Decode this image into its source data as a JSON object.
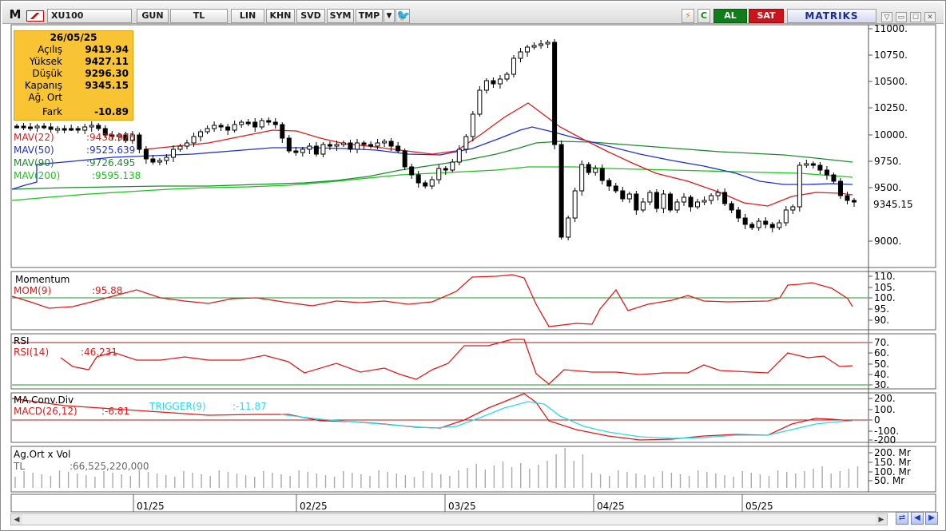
{
  "toolbar": {
    "logo": "M",
    "symbol": "XU100",
    "buttons": [
      "GUN",
      "TL",
      "LIN",
      "KHN",
      "SVD",
      "SYM",
      "TMP"
    ],
    "al": "AL",
    "sat": "SAT",
    "brand": "MATRIKS"
  },
  "info": {
    "date": "26/05/25",
    "rows": [
      {
        "label": "Açılış",
        "value": "9419.94"
      },
      {
        "label": "Yüksek",
        "value": "9427.11"
      },
      {
        "label": "Düşük",
        "value": "9296.30"
      },
      {
        "label": "Kapanış",
        "value": "9345.15"
      },
      {
        "label": "Ağ. Ort",
        "value": ""
      },
      {
        "label": "Fark",
        "value": "-10.89"
      }
    ]
  },
  "price_panel": {
    "legend": [
      {
        "label": "MAV(22)",
        "value": ":9438.975",
        "color": "#e11919"
      },
      {
        "label": "MAV(50)",
        "value": ":9525.639",
        "color": "#1f2fd6"
      },
      {
        "label": "MAV(90)",
        "value": ":9726.495",
        "color": "#1c8a2c"
      },
      {
        "label": "MAV(200)",
        "value": ":9595.138",
        "color": "#19c619"
      }
    ],
    "y_ticks": [
      "11000.",
      "10750.",
      "10500.",
      "10250.",
      "10000.",
      "9750.",
      "9500.",
      "9000."
    ],
    "last_price": "9345.15"
  },
  "momentum_panel": {
    "title": "Momentum",
    "series_label": "MOM(9)",
    "series_value": ":95.88",
    "y_ticks": [
      "110.",
      "105.",
      "100.",
      "95.",
      "90."
    ]
  },
  "rsi_panel": {
    "title": "RSI",
    "series_label": "RSI(14)",
    "series_value": ":46.231",
    "y_ticks": [
      "70.",
      "60.",
      "50.",
      "40.",
      "30."
    ]
  },
  "macd_panel": {
    "title": "MA.Conv.Div",
    "series_label": "MACD(26,12)",
    "series_value": ":-6.81",
    "trigger_label": "TRIGGER(9)",
    "trigger_value": ":-11.87",
    "y_ticks": [
      "200.",
      "100.",
      "0",
      "-100.",
      "-200"
    ]
  },
  "volume_panel": {
    "title": "Ag.Ort x Vol",
    "unit": "TL",
    "value": ":66,525,220,000",
    "y_ticks": [
      "200. Mr",
      "150. Mr",
      "100. Mr",
      "50. Mr"
    ]
  },
  "x_axis": [
    "01/25",
    "02/25",
    "03/25",
    "04/25",
    "05/25"
  ],
  "colors": {
    "mav22": "#e11919",
    "mav50": "#1f2fd6",
    "mav90": "#1c8a2c",
    "mav200": "#19c619",
    "momentum": "#e11919",
    "rsi": "#e11919",
    "macd": "#e11919",
    "trigger": "#2ed8e8",
    "reference_line_green": "#1c9a2c",
    "reference_line_red": "#b01b1b",
    "infobox": "#f8c433"
  }
}
